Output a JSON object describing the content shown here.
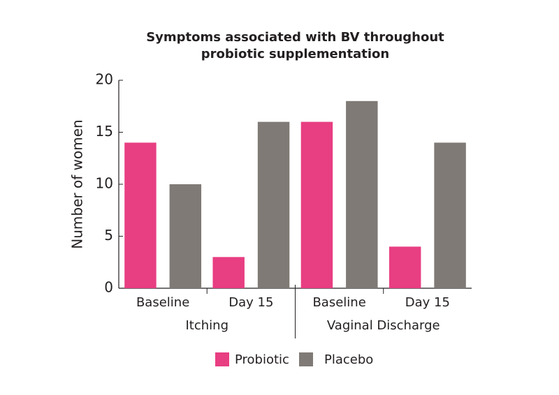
{
  "chart_data": {
    "type": "bar",
    "title": "Symptoms associated with BV throughout probiotic supplementation",
    "y_label": "Number of women",
    "categories": [
      "Baseline",
      "Day 15",
      "Baseline",
      "Day 15"
    ],
    "groups": [
      "Itching",
      "Vaginal Discharge"
    ],
    "series": [
      {
        "name": "Probiotic",
        "color": "#e83e82",
        "values": [
          14,
          3,
          16,
          4
        ]
      },
      {
        "name": "Placebo",
        "color": "#7f7a75",
        "values": [
          10,
          16,
          18,
          14
        ]
      }
    ],
    "ylim": [
      0,
      20
    ],
    "yticks": [
      0,
      5,
      10,
      15,
      20
    ],
    "grid": false,
    "legend": "bottom"
  }
}
